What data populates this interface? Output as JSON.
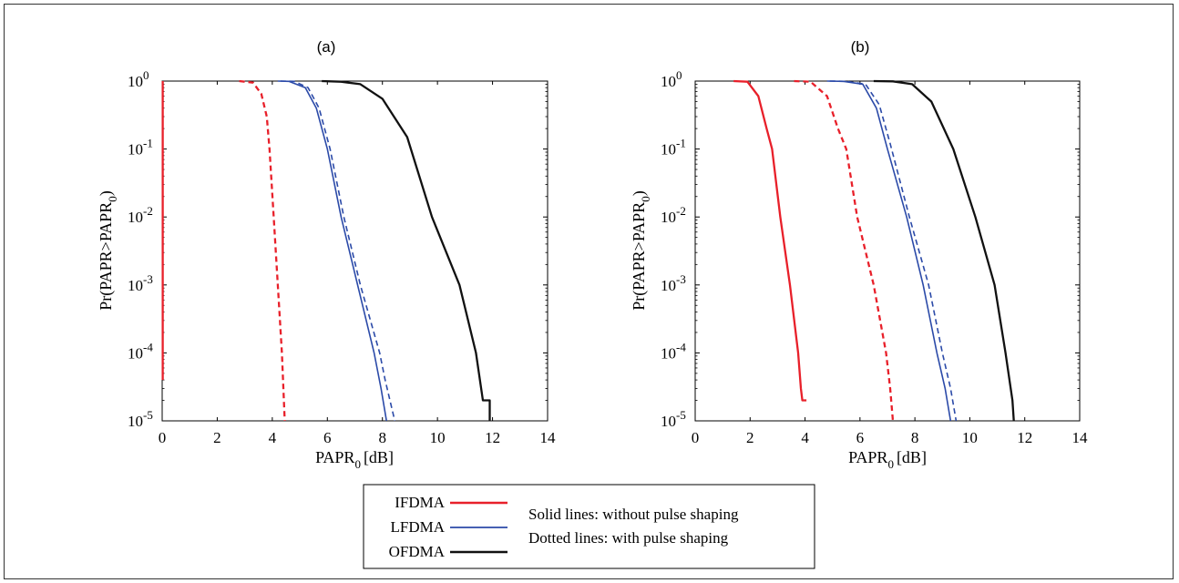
{
  "chart_data": [
    {
      "type": "line",
      "title": "(a)",
      "xlabel": "PAPR",
      "xlabel_sub": "0",
      "xlabel_unit": "[dB]",
      "ylabel": "Pr(PAPR>PAPR",
      "ylabel_sub": "0",
      "ylabel_close": ")",
      "xlim": [
        0,
        14
      ],
      "ylim": [
        1e-05,
        1
      ],
      "yscale": "log",
      "xticks": [
        "0",
        "2",
        "4",
        "6",
        "8",
        "10",
        "12",
        "14"
      ],
      "yticks": [
        {
          "base": "10",
          "exp": "0"
        },
        {
          "base": "10",
          "exp": "-1"
        },
        {
          "base": "10",
          "exp": "-2"
        },
        {
          "base": "10",
          "exp": "-3"
        },
        {
          "base": "10",
          "exp": "-4"
        },
        {
          "base": "10",
          "exp": "-5"
        }
      ],
      "series": [
        {
          "name": "IFDMA",
          "style": "solid",
          "color": "#e8202a",
          "points": [
            [
              0.02,
              1
            ],
            [
              0.02,
              0.1
            ],
            [
              0.02,
              0.01
            ],
            [
              0.02,
              0.001
            ],
            [
              0.02,
              4e-05
            ]
          ]
        },
        {
          "name": "IFDMA",
          "style": "dotted",
          "color": "#e8202a",
          "points": [
            [
              2.8,
              1
            ],
            [
              3.3,
              0.95
            ],
            [
              3.6,
              0.65
            ],
            [
              3.8,
              0.3
            ],
            [
              3.9,
              0.1
            ],
            [
              4.05,
              0.01
            ],
            [
              4.2,
              0.001
            ],
            [
              4.35,
              0.0001
            ],
            [
              4.45,
              1e-05
            ]
          ]
        },
        {
          "name": "LFDMA",
          "style": "solid",
          "color": "#2b4aa8",
          "points": [
            [
              4.2,
              1
            ],
            [
              4.6,
              0.99
            ],
            [
              5.2,
              0.8
            ],
            [
              5.6,
              0.4
            ],
            [
              6.0,
              0.1
            ],
            [
              6.5,
              0.01
            ],
            [
              7.1,
              0.001
            ],
            [
              7.7,
              0.0001
            ],
            [
              7.95,
              3e-05
            ],
            [
              8.15,
              1e-05
            ]
          ]
        },
        {
          "name": "LFDMA",
          "style": "dotted",
          "color": "#2b4aa8",
          "points": [
            [
              4.3,
              1
            ],
            [
              4.8,
              0.99
            ],
            [
              5.3,
              0.8
            ],
            [
              5.7,
              0.4
            ],
            [
              6.1,
              0.1
            ],
            [
              6.6,
              0.01
            ],
            [
              7.2,
              0.001
            ],
            [
              7.9,
              0.0001
            ],
            [
              8.1,
              4e-05
            ],
            [
              8.45,
              1e-05
            ]
          ]
        },
        {
          "name": "OFDMA",
          "style": "solid",
          "color": "#111111",
          "points": [
            [
              5.8,
              1
            ],
            [
              6.5,
              0.98
            ],
            [
              7.2,
              0.9
            ],
            [
              8.0,
              0.55
            ],
            [
              8.9,
              0.15
            ],
            [
              9.8,
              0.01
            ],
            [
              10.8,
              0.001
            ],
            [
              11.4,
              0.0001
            ],
            [
              11.65,
              2e-05
            ],
            [
              11.9,
              2e-05
            ],
            [
              11.9,
              1e-05
            ]
          ]
        }
      ]
    },
    {
      "type": "line",
      "title": "(b)",
      "xlabel": "PAPR",
      "xlabel_sub": "0",
      "xlabel_unit": "[dB]",
      "ylabel": "Pr(PAPR>PAPR",
      "ylabel_sub": "0",
      "ylabel_close": ")",
      "xlim": [
        0,
        14
      ],
      "ylim": [
        1e-05,
        1
      ],
      "yscale": "log",
      "xticks": [
        "0",
        "2",
        "4",
        "6",
        "8",
        "10",
        "12",
        "14"
      ],
      "yticks": [
        {
          "base": "10",
          "exp": "0"
        },
        {
          "base": "10",
          "exp": "-1"
        },
        {
          "base": "10",
          "exp": "-2"
        },
        {
          "base": "10",
          "exp": "-3"
        },
        {
          "base": "10",
          "exp": "-4"
        },
        {
          "base": "10",
          "exp": "-5"
        }
      ],
      "series": [
        {
          "name": "IFDMA",
          "style": "solid",
          "color": "#e8202a",
          "points": [
            [
              1.4,
              1
            ],
            [
              1.9,
              0.98
            ],
            [
              2.3,
              0.6
            ],
            [
              2.6,
              0.2
            ],
            [
              2.8,
              0.1
            ],
            [
              3.1,
              0.01
            ],
            [
              3.45,
              0.001
            ],
            [
              3.75,
              0.0001
            ],
            [
              3.85,
              3e-05
            ],
            [
              3.9,
              2e-05
            ],
            [
              4.05,
              2e-05
            ]
          ]
        },
        {
          "name": "IFDMA",
          "style": "dotted",
          "color": "#e8202a",
          "points": [
            [
              3.6,
              1
            ],
            [
              4.2,
              0.98
            ],
            [
              4.8,
              0.6
            ],
            [
              5.2,
              0.2
            ],
            [
              5.5,
              0.1
            ],
            [
              5.9,
              0.01
            ],
            [
              6.5,
              0.001
            ],
            [
              6.95,
              0.0001
            ],
            [
              7.1,
              3e-05
            ],
            [
              7.2,
              1e-05
            ]
          ]
        },
        {
          "name": "LFDMA",
          "style": "solid",
          "color": "#2b4aa8",
          "points": [
            [
              4.8,
              1
            ],
            [
              5.4,
              0.99
            ],
            [
              6.1,
              0.9
            ],
            [
              6.6,
              0.4
            ],
            [
              7.0,
              0.1
            ],
            [
              7.7,
              0.01
            ],
            [
              8.3,
              0.001
            ],
            [
              8.8,
              0.0001
            ],
            [
              9.1,
              3e-05
            ],
            [
              9.3,
              1e-05
            ]
          ]
        },
        {
          "name": "LFDMA",
          "style": "dotted",
          "color": "#2b4aa8",
          "points": [
            [
              4.9,
              1
            ],
            [
              5.5,
              0.99
            ],
            [
              6.2,
              0.9
            ],
            [
              6.7,
              0.45
            ],
            [
              7.1,
              0.12
            ],
            [
              7.8,
              0.01
            ],
            [
              8.5,
              0.001
            ],
            [
              9.0,
              0.0001
            ],
            [
              9.3,
              3e-05
            ],
            [
              9.5,
              1e-05
            ]
          ]
        },
        {
          "name": "OFDMA",
          "style": "solid",
          "color": "#111111",
          "points": [
            [
              6.5,
              1
            ],
            [
              7.2,
              0.99
            ],
            [
              7.9,
              0.9
            ],
            [
              8.6,
              0.5
            ],
            [
              9.4,
              0.1
            ],
            [
              10.2,
              0.01
            ],
            [
              10.9,
              0.001
            ],
            [
              11.3,
              0.0001
            ],
            [
              11.55,
              2e-05
            ],
            [
              11.6,
              1e-05
            ]
          ]
        }
      ]
    }
  ],
  "legend": {
    "items": [
      {
        "label": "IFDMA",
        "color": "#e8202a"
      },
      {
        "label": "LFDMA",
        "color": "#2b4aa8"
      },
      {
        "label": "OFDMA",
        "color": "#111111"
      }
    ],
    "notes": [
      "Solid lines: without pulse shaping",
      "Dotted lines: with pulse shaping"
    ]
  }
}
